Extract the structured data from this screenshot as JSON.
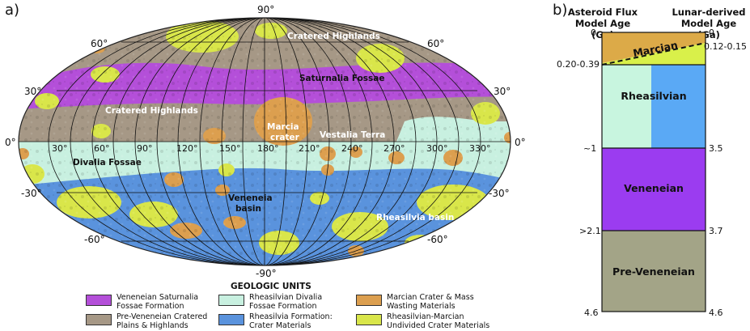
{
  "panel_a": {
    "label": "a)",
    "lat_labels": {
      "n90": "90°",
      "n60l": "60°",
      "n60r": "60°",
      "n30l": "30°",
      "n30r": "30°",
      "eq_l": "0°",
      "eq_r": "0°",
      "s30l": "-30°",
      "s30r": "-30°",
      "s60l": "-60°",
      "s60r": "-60°",
      "s90": "-90°"
    },
    "lon_labels": [
      "30°",
      "60°",
      "90°",
      "120°",
      "150°",
      "180°",
      "210°",
      "240°",
      "270°",
      "300°",
      "330°"
    ],
    "features": {
      "cratered_highlands_north": "Cratered Highlands",
      "saturnalia_fossae": "Saturnalia Fossae",
      "cratered_highlands_west": "Cratered Highlands",
      "marcia_line1": "Marcia",
      "marcia_line2": "crater",
      "vestalia_terra": "Vestalia Terra",
      "divalia_fossae": "Divalia Fossae",
      "veneneia_line1": "Veneneia",
      "veneneia_line2": "basin",
      "rheasilvia_basin": "Rheasilvia basin"
    },
    "legend": {
      "title": "GEOLOGIC UNITS",
      "items": [
        {
          "line1": "Veneneian Saturnalia",
          "line2": "Fossae Formation",
          "color": "#b44fd9"
        },
        {
          "line1": "Pre-Veneneian Cratered",
          "line2": "Plains & Highlands",
          "color": "#a69886"
        },
        {
          "line1": "Rheasilvian Divalia",
          "line2": "Fossae Formation",
          "color": "#c8f0e0"
        },
        {
          "line1": "Rheasilvia Formation:",
          "line2": "Crater Materials",
          "color": "#5a93dd"
        },
        {
          "line1": "Marcian Crater & Mass",
          "line2": "Wasting Materials",
          "color": "#dc9f4f"
        },
        {
          "line1": "Rheasilvian-Marcian",
          "line2": "Undivided Crater Materials",
          "color": "#d9e64a"
        }
      ]
    }
  },
  "panel_b": {
    "label": "b)",
    "left_header_1": "Asteroid Flux",
    "left_header_2": "Model Age (Ga)",
    "right_header_1": "Lunar-derived",
    "right_header_2": "Model Age (Ga)",
    "left_ages": {
      "a0": "0",
      "a1": "0.20-0.39",
      "a2": "~1",
      "a3": ">2.1",
      "a4": "4.6"
    },
    "right_ages": {
      "a0": "0",
      "a1": "0.12-0.15",
      "a2": "3.5",
      "a3": "3.7",
      "a4": "4.6"
    },
    "units": {
      "marcian": "Marcian",
      "rheasilvian": "Rheasilvian",
      "veneneian": "Veneneian",
      "pre_veneneian": "Pre-Veneneian"
    },
    "colors": {
      "marcian": "#dcaa48",
      "rheasilvian_left": "#c8f5df",
      "rheasilvian_right": "#5aa9f5",
      "yellow_wedge": "#d9f04a",
      "veneneian": "#9b3cf0",
      "pre_veneneian": "#a3a487"
    }
  }
}
